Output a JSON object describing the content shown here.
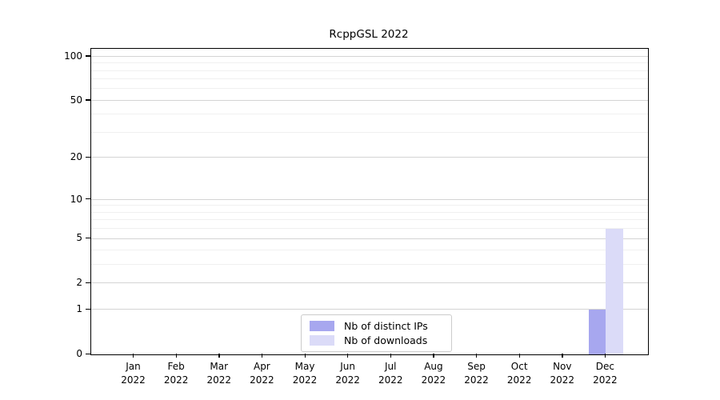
{
  "figure": {
    "background": "#ffffff",
    "frame_color": "#000000",
    "major_grid_color": "#d4d4d4",
    "minor_grid_color": "#f0f0f0"
  },
  "chart_data": {
    "type": "bar",
    "title": "RcppGSL 2022",
    "categories": [
      "Jan 2022",
      "Feb 2022",
      "Mar 2022",
      "Apr 2022",
      "May 2022",
      "Jun 2022",
      "Jul 2022",
      "Aug 2022",
      "Sep 2022",
      "Oct 2022",
      "Nov 2022",
      "Dec 2022"
    ],
    "series": [
      {
        "name": "Nb of distinct IPs",
        "color": "#a7a7ef",
        "values": [
          0,
          0,
          0,
          0,
          0,
          0,
          0,
          0,
          0,
          0,
          0,
          1
        ]
      },
      {
        "name": "Nb of downloads",
        "color": "#dbdbf8",
        "values": [
          0,
          0,
          0,
          0,
          0,
          0,
          0,
          0,
          0,
          0,
          0,
          6
        ]
      }
    ],
    "yticks": [
      0,
      1,
      2,
      5,
      10,
      20,
      50,
      100
    ],
    "minor_gridlines": [
      3,
      4,
      6,
      7,
      8,
      9,
      30,
      40,
      60,
      70,
      80,
      90
    ],
    "scale": "log1p",
    "ylim": [
      0,
      113
    ],
    "xlabel": "",
    "ylabel": "",
    "grid": true,
    "legend_position": "bottom-center"
  }
}
